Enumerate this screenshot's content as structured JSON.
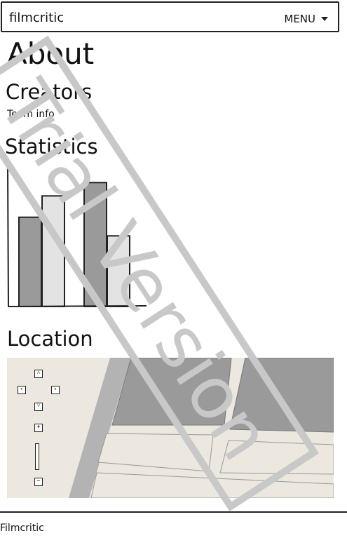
{
  "header": {
    "brand": "filmcritic",
    "menu_label": "MENU"
  },
  "page": {
    "title": "About",
    "creators_heading": "Creators",
    "team_info": "Team info",
    "statistics_heading": "Statistics",
    "location_heading": "Location"
  },
  "chart_data": {
    "type": "bar",
    "categories": [
      "",
      "",
      "",
      ""
    ],
    "values": [
      67,
      83,
      93,
      53
    ],
    "ylim": [
      0,
      100
    ],
    "colors": [
      "#9a9a9a",
      "#e3e3e3",
      "#9a9a9a",
      "#e3e3e3"
    ],
    "title": "",
    "xlabel": "",
    "ylabel": "",
    "grid": false
  },
  "map": {
    "controls": [
      "pan-up",
      "pan-left",
      "pan-right",
      "pan-down",
      "zoom-in",
      "zoom-out"
    ],
    "colors": {
      "land": "#ece8df",
      "block": "#9a9a9a",
      "road": "#b3b3b3"
    }
  },
  "footer": {
    "text": "Filmcritic"
  },
  "watermark": {
    "text": "Trial Version"
  }
}
